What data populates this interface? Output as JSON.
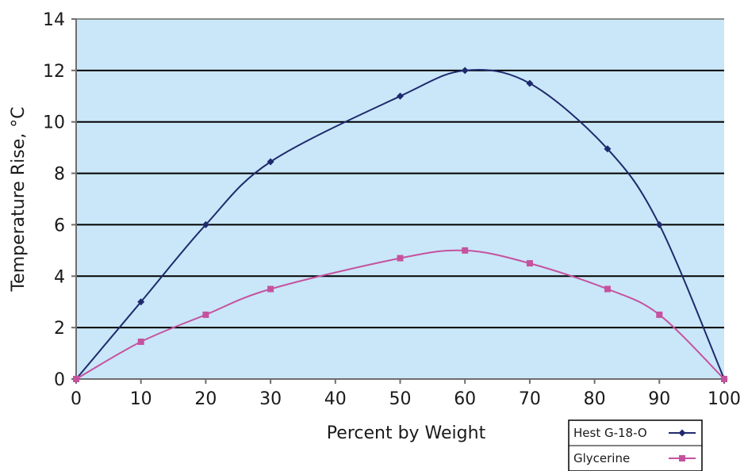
{
  "chart_data": {
    "type": "line",
    "title": "",
    "xlabel": "Percent by Weight",
    "ylabel": "Temperature Rise, °C",
    "xlim": [
      0,
      100
    ],
    "ylim": [
      0,
      14
    ],
    "xticks": [
      "0",
      "10",
      "20",
      "30",
      "40",
      "50",
      "60",
      "70",
      "80",
      "90",
      "100"
    ],
    "yticks": [
      "0",
      "2",
      "4",
      "6",
      "8",
      "10",
      "12",
      "14"
    ],
    "grid": "horizontal",
    "legend_position": "bottom-right",
    "plot_background": "#c9e7f8",
    "series": [
      {
        "name": "Hest G-18-O",
        "color": "#1f2a6e",
        "marker": "diamond",
        "x": [
          0,
          10,
          20,
          30,
          50,
          60,
          70,
          82,
          90,
          100
        ],
        "y": [
          0,
          3.0,
          6.0,
          8.45,
          11.0,
          12.0,
          11.5,
          8.95,
          6.0,
          0
        ]
      },
      {
        "name": "Glycerine",
        "color": "#c6529f",
        "marker": "square",
        "x": [
          0,
          10,
          20,
          30,
          50,
          60,
          70,
          82,
          90,
          100
        ],
        "y": [
          0,
          1.45,
          2.5,
          3.5,
          4.7,
          5.0,
          4.5,
          3.5,
          2.5,
          0
        ]
      }
    ]
  }
}
